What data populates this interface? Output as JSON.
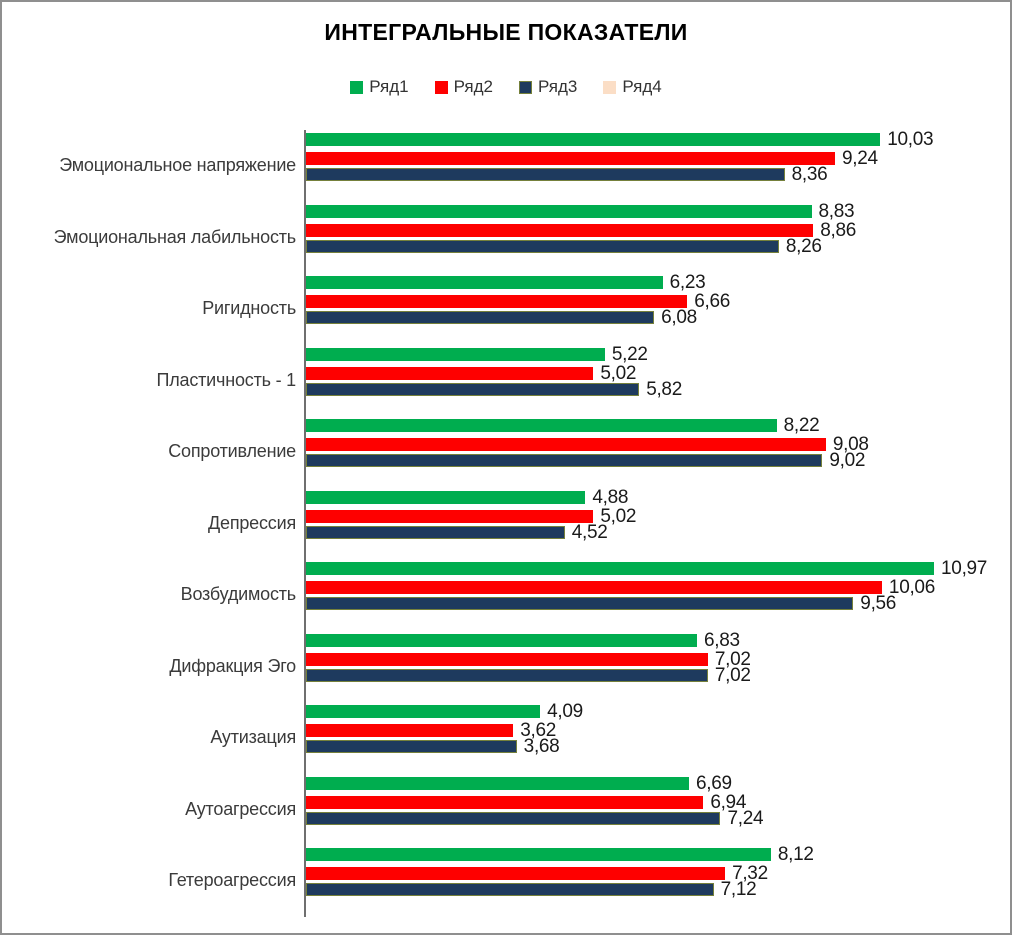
{
  "title": "ИНТЕГРАЛЬНЫЕ ПОКАЗАТЕЛИ",
  "legend": [
    {
      "label": "Ряд1",
      "color": "#00AD4F",
      "border": ""
    },
    {
      "label": "Ряд2",
      "color": "#FE0000",
      "border": ""
    },
    {
      "label": "Ряд3",
      "color": "#1E3A5E",
      "border": "#75803B"
    },
    {
      "label": "Ряд4",
      "color": "#FBDEC6",
      "border": ""
    }
  ],
  "chart_data": {
    "type": "bar",
    "orientation": "horizontal",
    "title": "ИНТЕГРАЛЬНЫЕ ПОКАЗАТЕЛИ",
    "categories": [
      "Эмоциональное напряжение",
      "Эмоциональная лабильность",
      "Ригидность",
      "Пластичность - 1",
      "Сопротивление",
      "Депрессия",
      "Возбудимость",
      "Дифракция Эго",
      "Аутизация",
      "Аутоагрессия",
      "Гетероагрессия"
    ],
    "series": [
      {
        "name": "Ряд1",
        "color": "#00AD4F",
        "border": "",
        "values": [
          10.03,
          8.83,
          6.23,
          5.22,
          8.22,
          4.88,
          10.97,
          6.83,
          4.09,
          6.69,
          8.12
        ]
      },
      {
        "name": "Ряд2",
        "color": "#FE0000",
        "border": "",
        "values": [
          9.24,
          8.86,
          6.66,
          5.02,
          9.08,
          5.02,
          10.06,
          7.02,
          3.62,
          6.94,
          7.32
        ]
      },
      {
        "name": "Ряд3",
        "color": "#1E3A5E",
        "border": "#75803B",
        "values": [
          8.36,
          8.26,
          6.08,
          5.82,
          9.02,
          4.52,
          9.56,
          7.02,
          3.68,
          7.24,
          7.12
        ]
      },
      {
        "name": "Ряд4",
        "color": "#FBDEC6",
        "border": "",
        "values": []
      }
    ],
    "value_labels": true,
    "decimal_separator": ",",
    "xlim": [
      0,
      12
    ],
    "legend_position": "top",
    "grid": false,
    "axis_color": "#6F6F6F"
  }
}
